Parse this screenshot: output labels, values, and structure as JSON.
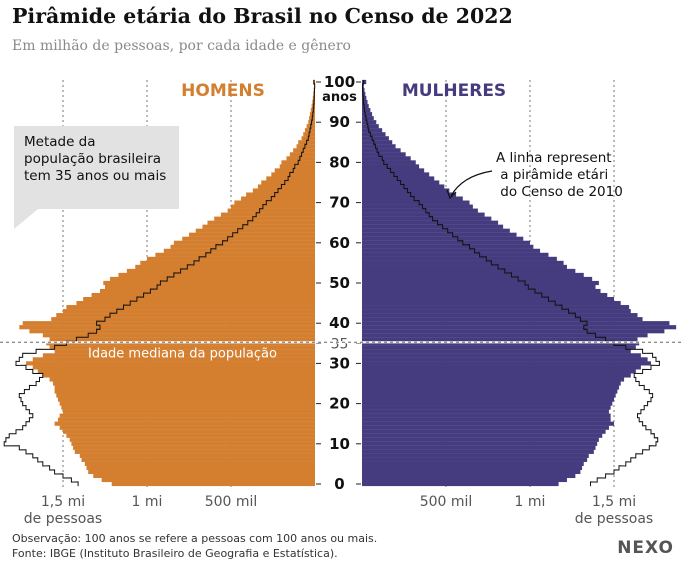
{
  "header": {
    "title": "Pirâmide etária do Brasil no Censo de 2022",
    "subtitle": "Em milhão de pessoas, por cada idade e gênero"
  },
  "footer": {
    "note": "Observação: 100 anos se refere a pessoas com 100 anos ou mais.",
    "source": "Fonte: IBGE (Instituto Brasileiro de Geografia e Estatística).",
    "logo": "NEXO"
  },
  "annotations": {
    "half_callout": "Metade da população brasileira tem 35 anos ou mais",
    "line_callout": "A linha representa a pirâmide etária do Censo de 2010",
    "median_label": "Idade mediana da população"
  },
  "chart_data": {
    "type": "bar",
    "orientation": "horizontal-pyramid",
    "unit_label": "anos",
    "age_ticks": [
      0,
      10,
      20,
      30,
      35,
      40,
      50,
      60,
      70,
      80,
      90,
      100
    ],
    "age_tick_labels": [
      "0",
      "10",
      "20",
      "30",
      "35",
      "40",
      "50",
      "60",
      "70",
      "80",
      "90",
      "100"
    ],
    "median_age": 35,
    "x_range_millions": [
      0,
      1.8
    ],
    "x_ticks": [
      {
        "value": 1.5,
        "label": "1,5 mi"
      },
      {
        "value": 1.0,
        "label": "1 mi"
      },
      {
        "value": 0.5,
        "label": "500 mil"
      }
    ],
    "x_unit_label": "de pessoas",
    "colors": {
      "men": "#d47f2f",
      "women": "#453c7f",
      "census_2010_line": "#111111"
    },
    "series": [
      {
        "name": "HOMENS",
        "census": 2022,
        "ages": [
          0,
          1,
          2,
          3,
          4,
          5,
          6,
          7,
          8,
          9,
          10,
          11,
          12,
          13,
          14,
          15,
          16,
          17,
          18,
          19,
          20,
          21,
          22,
          23,
          24,
          25,
          26,
          27,
          28,
          29,
          30,
          31,
          32,
          33,
          34,
          35,
          36,
          37,
          38,
          39,
          40,
          41,
          42,
          43,
          44,
          45,
          46,
          47,
          48,
          49,
          50,
          51,
          52,
          53,
          54,
          55,
          56,
          57,
          58,
          59,
          60,
          61,
          62,
          63,
          64,
          65,
          66,
          67,
          68,
          69,
          70,
          71,
          72,
          73,
          74,
          75,
          76,
          77,
          78,
          79,
          80,
          81,
          82,
          83,
          84,
          85,
          86,
          87,
          88,
          89,
          90,
          91,
          92,
          93,
          94,
          95,
          96,
          97,
          98,
          99,
          100
        ],
        "values": [
          1.21,
          1.27,
          1.32,
          1.35,
          1.36,
          1.37,
          1.39,
          1.4,
          1.43,
          1.44,
          1.45,
          1.46,
          1.48,
          1.5,
          1.52,
          1.55,
          1.53,
          1.52,
          1.5,
          1.51,
          1.52,
          1.53,
          1.54,
          1.55,
          1.55,
          1.56,
          1.58,
          1.62,
          1.65,
          1.68,
          1.72,
          1.68,
          1.62,
          1.55,
          1.58,
          1.6,
          1.58,
          1.62,
          1.7,
          1.76,
          1.74,
          1.57,
          1.54,
          1.5,
          1.48,
          1.42,
          1.38,
          1.33,
          1.28,
          1.25,
          1.26,
          1.22,
          1.17,
          1.12,
          1.07,
          1.04,
          1.0,
          0.95,
          0.9,
          0.86,
          0.84,
          0.79,
          0.75,
          0.71,
          0.67,
          0.64,
          0.6,
          0.56,
          0.52,
          0.5,
          0.48,
          0.44,
          0.41,
          0.37,
          0.34,
          0.32,
          0.29,
          0.26,
          0.24,
          0.21,
          0.2,
          0.17,
          0.15,
          0.13,
          0.11,
          0.1,
          0.08,
          0.07,
          0.06,
          0.05,
          0.04,
          0.035,
          0.03,
          0.025,
          0.02,
          0.016,
          0.013,
          0.01,
          0.008,
          0.006,
          0.012
        ]
      },
      {
        "name": "MULHERES",
        "census": 2022,
        "ages": [
          0,
          1,
          2,
          3,
          4,
          5,
          6,
          7,
          8,
          9,
          10,
          11,
          12,
          13,
          14,
          15,
          16,
          17,
          18,
          19,
          20,
          21,
          22,
          23,
          24,
          25,
          26,
          27,
          28,
          29,
          30,
          31,
          32,
          33,
          34,
          35,
          36,
          37,
          38,
          39,
          40,
          41,
          42,
          43,
          44,
          45,
          46,
          47,
          48,
          49,
          50,
          51,
          52,
          53,
          54,
          55,
          56,
          57,
          58,
          59,
          60,
          61,
          62,
          63,
          64,
          65,
          66,
          67,
          68,
          69,
          70,
          71,
          72,
          73,
          74,
          75,
          76,
          77,
          78,
          79,
          80,
          81,
          82,
          83,
          84,
          85,
          86,
          87,
          88,
          89,
          90,
          91,
          92,
          93,
          94,
          95,
          96,
          97,
          98,
          99,
          100
        ],
        "values": [
          1.17,
          1.22,
          1.27,
          1.3,
          1.31,
          1.32,
          1.34,
          1.35,
          1.38,
          1.39,
          1.4,
          1.41,
          1.43,
          1.45,
          1.47,
          1.5,
          1.48,
          1.48,
          1.47,
          1.48,
          1.49,
          1.5,
          1.51,
          1.52,
          1.53,
          1.54,
          1.56,
          1.6,
          1.63,
          1.66,
          1.72,
          1.7,
          1.66,
          1.6,
          1.63,
          1.65,
          1.64,
          1.7,
          1.8,
          1.87,
          1.83,
          1.67,
          1.64,
          1.6,
          1.59,
          1.54,
          1.5,
          1.46,
          1.42,
          1.39,
          1.41,
          1.37,
          1.32,
          1.27,
          1.22,
          1.2,
          1.16,
          1.11,
          1.06,
          1.02,
          1.0,
          0.96,
          0.92,
          0.88,
          0.84,
          0.81,
          0.77,
          0.73,
          0.69,
          0.66,
          0.64,
          0.6,
          0.56,
          0.52,
          0.49,
          0.46,
          0.43,
          0.4,
          0.37,
          0.34,
          0.32,
          0.29,
          0.26,
          0.23,
          0.2,
          0.18,
          0.16,
          0.14,
          0.12,
          0.1,
          0.085,
          0.07,
          0.06,
          0.05,
          0.04,
          0.033,
          0.026,
          0.02,
          0.015,
          0.011,
          0.025
        ]
      },
      {
        "name": "HOMENS 2010",
        "census": 2010,
        "ages": [
          0,
          1,
          2,
          3,
          4,
          5,
          6,
          7,
          8,
          9,
          10,
          11,
          12,
          13,
          14,
          15,
          16,
          17,
          18,
          19,
          20,
          21,
          22,
          23,
          24,
          25,
          26,
          27,
          28,
          29,
          30,
          31,
          32,
          33,
          34,
          35,
          36,
          37,
          38,
          39,
          40,
          41,
          42,
          43,
          44,
          45,
          46,
          47,
          48,
          49,
          50,
          51,
          52,
          53,
          54,
          55,
          56,
          57,
          58,
          59,
          60,
          61,
          62,
          63,
          64,
          65,
          66,
          67,
          68,
          69,
          70,
          71,
          72,
          73,
          74,
          75,
          76,
          77,
          78,
          79,
          80,
          81,
          82,
          83,
          84,
          85,
          86,
          87,
          88,
          89,
          90,
          91,
          92,
          93,
          94,
          95,
          96,
          97,
          98,
          99,
          100
        ],
        "values": [
          1.41,
          1.45,
          1.5,
          1.55,
          1.58,
          1.62,
          1.65,
          1.68,
          1.72,
          1.76,
          1.85,
          1.84,
          1.82,
          1.78,
          1.74,
          1.72,
          1.7,
          1.68,
          1.7,
          1.72,
          1.74,
          1.75,
          1.76,
          1.73,
          1.7,
          1.66,
          1.64,
          1.62,
          1.68,
          1.72,
          1.78,
          1.76,
          1.74,
          1.66,
          1.55,
          1.48,
          1.42,
          1.35,
          1.3,
          1.28,
          1.3,
          1.25,
          1.22,
          1.18,
          1.14,
          1.1,
          1.06,
          1.02,
          0.98,
          0.94,
          0.92,
          0.88,
          0.84,
          0.8,
          0.76,
          0.72,
          0.69,
          0.65,
          0.62,
          0.59,
          0.55,
          0.52,
          0.49,
          0.46,
          0.43,
          0.4,
          0.37,
          0.35,
          0.33,
          0.31,
          0.29,
          0.26,
          0.24,
          0.22,
          0.2,
          0.18,
          0.16,
          0.15,
          0.13,
          0.12,
          0.1,
          0.09,
          0.08,
          0.07,
          0.06,
          0.05,
          0.04,
          0.035,
          0.03,
          0.025,
          0.02,
          0.016,
          0.013,
          0.01,
          0.008,
          0.006,
          0.005,
          0.004,
          0.003,
          0.002,
          0.006
        ]
      },
      {
        "name": "MULHERES 2010",
        "census": 2010,
        "ages": [
          0,
          1,
          2,
          3,
          4,
          5,
          6,
          7,
          8,
          9,
          10,
          11,
          12,
          13,
          14,
          15,
          16,
          17,
          18,
          19,
          20,
          21,
          22,
          23,
          24,
          25,
          26,
          27,
          28,
          29,
          30,
          31,
          32,
          33,
          34,
          35,
          36,
          37,
          38,
          39,
          40,
          41,
          42,
          43,
          44,
          45,
          46,
          47,
          48,
          49,
          50,
          51,
          52,
          53,
          54,
          55,
          56,
          57,
          58,
          59,
          60,
          61,
          62,
          63,
          64,
          65,
          66,
          67,
          68,
          69,
          70,
          71,
          72,
          73,
          74,
          75,
          76,
          77,
          78,
          79,
          80,
          81,
          82,
          83,
          84,
          85,
          86,
          87,
          88,
          89,
          90,
          91,
          92,
          93,
          94,
          95,
          96,
          97,
          98,
          99,
          100
        ],
        "values": [
          1.36,
          1.4,
          1.45,
          1.5,
          1.53,
          1.57,
          1.6,
          1.63,
          1.67,
          1.71,
          1.75,
          1.76,
          1.74,
          1.72,
          1.69,
          1.67,
          1.65,
          1.64,
          1.66,
          1.68,
          1.7,
          1.72,
          1.73,
          1.71,
          1.68,
          1.65,
          1.63,
          1.62,
          1.67,
          1.72,
          1.77,
          1.75,
          1.73,
          1.67,
          1.57,
          1.5,
          1.45,
          1.39,
          1.34,
          1.32,
          1.34,
          1.3,
          1.27,
          1.23,
          1.19,
          1.15,
          1.11,
          1.07,
          1.03,
          0.99,
          0.97,
          0.93,
          0.89,
          0.85,
          0.81,
          0.77,
          0.74,
          0.7,
          0.67,
          0.64,
          0.6,
          0.57,
          0.54,
          0.51,
          0.48,
          0.45,
          0.42,
          0.4,
          0.38,
          0.36,
          0.34,
          0.31,
          0.29,
          0.27,
          0.25,
          0.23,
          0.21,
          0.19,
          0.17,
          0.15,
          0.13,
          0.12,
          0.1,
          0.09,
          0.08,
          0.07,
          0.06,
          0.05,
          0.04,
          0.035,
          0.03,
          0.024,
          0.019,
          0.015,
          0.012,
          0.009,
          0.007,
          0.005,
          0.004,
          0.003,
          0.01
        ]
      }
    ]
  }
}
